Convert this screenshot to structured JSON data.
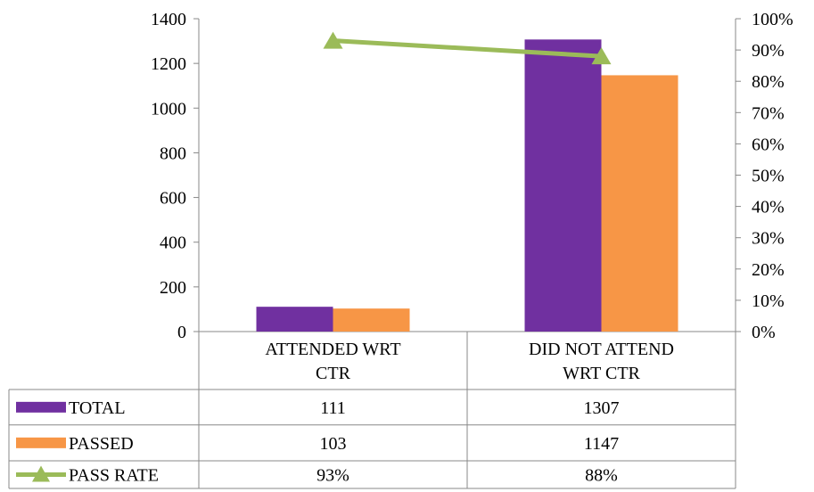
{
  "chart_data": {
    "type": "bar",
    "categories": [
      "ATTENDED WRT CTR",
      "DID NOT ATTEND WRT CTR"
    ],
    "category_lines": [
      [
        "ATTENDED WRT",
        "CTR"
      ],
      [
        "DID NOT ATTEND",
        "WRT CTR"
      ]
    ],
    "series": [
      {
        "name": "TOTAL",
        "kind": "bar",
        "axis": "left",
        "color": "#7030A0",
        "values": [
          111,
          1307
        ],
        "labels": [
          "111",
          "1307"
        ]
      },
      {
        "name": "PASSED",
        "kind": "bar",
        "axis": "left",
        "color": "#F79646",
        "values": [
          103,
          1147
        ],
        "labels": [
          "103",
          "1147"
        ]
      },
      {
        "name": "PASS RATE",
        "kind": "line",
        "marker": "triangle",
        "axis": "right",
        "color": "#9BBB59",
        "values": [
          0.93,
          0.88
        ],
        "labels": [
          "93%",
          "88%"
        ]
      }
    ],
    "y_left": {
      "min": 0,
      "max": 1400,
      "step": 200,
      "ticks": [
        "0",
        "200",
        "400",
        "600",
        "800",
        "1000",
        "1200",
        "1400"
      ]
    },
    "y_right": {
      "min": 0,
      "max": 1,
      "step": 0.1,
      "ticks": [
        "0%",
        "10%",
        "20%",
        "30%",
        "40%",
        "50%",
        "60%",
        "70%",
        "80%",
        "90%",
        "100%"
      ]
    },
    "data_table": true,
    "grid": false,
    "legend": "data-table"
  }
}
